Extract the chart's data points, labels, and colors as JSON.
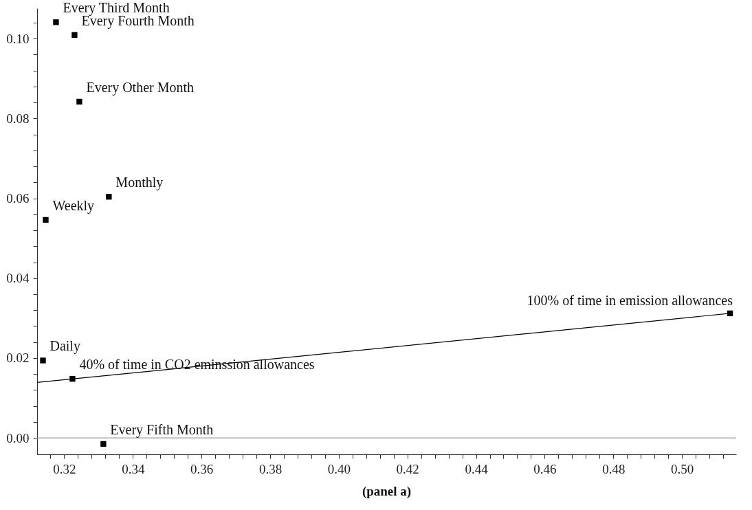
{
  "chart_data": {
    "type": "scatter",
    "title": "(panel a)",
    "marker": "square",
    "series": [
      {
        "color": "#000000",
        "x": [
          0.3176,
          0.323,
          0.3244,
          0.333,
          0.3146,
          0.3138,
          0.3224,
          0.3314,
          0.514
        ],
        "values": [
          0.1041,
          0.1009,
          0.0842,
          0.0604,
          0.0546,
          0.0194,
          0.0148,
          -0.0015,
          0.0312
        ]
      },
      {
        "type": "line",
        "marker": "none",
        "color": "#000000",
        "x": [
          0.3121,
          0.514
        ],
        "values": [
          0.0139,
          0.0312
        ]
      }
    ],
    "annotations": [
      {
        "text": "Every Third Month",
        "x": 0.3176,
        "y": 0.1041
      },
      {
        "text": "Every Fourth Month",
        "x": 0.323,
        "y": 0.1009
      },
      {
        "text": "Every Other Month",
        "x": 0.3244,
        "y": 0.0842
      },
      {
        "text": "Monthly",
        "x": 0.333,
        "y": 0.0604
      },
      {
        "text": "Weekly",
        "x": 0.3146,
        "y": 0.0546
      },
      {
        "text": "Daily",
        "x": 0.3138,
        "y": 0.0194
      },
      {
        "text": "40% of time in CO2 eminssion allowances",
        "x": 0.3224,
        "y": 0.0148
      },
      {
        "text": "Every Fifth Month",
        "x": 0.3314,
        "y": -0.0015
      },
      {
        "text": "100% of time in emission allowances",
        "x": 0.514,
        "y": 0.0312
      }
    ],
    "ref_lines": [
      {
        "axis": "y",
        "value": 0,
        "color": "#a0a0a0"
      }
    ],
    "xlim": [
      0.3121,
      0.5158
    ],
    "ylim": [
      -0.0041,
      0.1076
    ],
    "xticks": [
      {
        "value": 0.316,
        "label": null
      },
      {
        "value": 0.32,
        "label": "0.32"
      },
      {
        "value": 0.324,
        "label": null
      },
      {
        "value": 0.328,
        "label": null
      },
      {
        "value": 0.332,
        "label": null
      },
      {
        "value": 0.336,
        "label": null
      },
      {
        "value": 0.34,
        "label": "0.34"
      },
      {
        "value": 0.344,
        "label": null
      },
      {
        "value": 0.348,
        "label": null
      },
      {
        "value": 0.352,
        "label": null
      },
      {
        "value": 0.356,
        "label": null
      },
      {
        "value": 0.36,
        "label": "0.36"
      },
      {
        "value": 0.364,
        "label": null
      },
      {
        "value": 0.368,
        "label": null
      },
      {
        "value": 0.372,
        "label": null
      },
      {
        "value": 0.376,
        "label": null
      },
      {
        "value": 0.38,
        "label": "0.38"
      },
      {
        "value": 0.384,
        "label": null
      },
      {
        "value": 0.388,
        "label": null
      },
      {
        "value": 0.392,
        "label": null
      },
      {
        "value": 0.396,
        "label": null
      },
      {
        "value": 0.4,
        "label": "0.40"
      },
      {
        "value": 0.404,
        "label": null
      },
      {
        "value": 0.408,
        "label": null
      },
      {
        "value": 0.412,
        "label": null
      },
      {
        "value": 0.416,
        "label": null
      },
      {
        "value": 0.42,
        "label": "0.42"
      },
      {
        "value": 0.424,
        "label": null
      },
      {
        "value": 0.428,
        "label": null
      },
      {
        "value": 0.432,
        "label": null
      },
      {
        "value": 0.436,
        "label": null
      },
      {
        "value": 0.44,
        "label": "0.44"
      },
      {
        "value": 0.444,
        "label": null
      },
      {
        "value": 0.448,
        "label": null
      },
      {
        "value": 0.452,
        "label": null
      },
      {
        "value": 0.456,
        "label": null
      },
      {
        "value": 0.46,
        "label": "0.46"
      },
      {
        "value": 0.464,
        "label": null
      },
      {
        "value": 0.468,
        "label": null
      },
      {
        "value": 0.472,
        "label": null
      },
      {
        "value": 0.476,
        "label": null
      },
      {
        "value": 0.48,
        "label": "0.48"
      },
      {
        "value": 0.484,
        "label": null
      },
      {
        "value": 0.488,
        "label": null
      },
      {
        "value": 0.492,
        "label": null
      },
      {
        "value": 0.496,
        "label": null
      },
      {
        "value": 0.5,
        "label": "0.50"
      },
      {
        "value": 0.504,
        "label": null
      },
      {
        "value": 0.508,
        "label": null
      },
      {
        "value": 0.512,
        "label": null
      }
    ],
    "yticks": [
      {
        "value": 0,
        "label": "0.00"
      },
      {
        "value": 0.004,
        "label": null
      },
      {
        "value": 0.008,
        "label": null
      },
      {
        "value": 0.012,
        "label": null
      },
      {
        "value": 0.016,
        "label": null
      },
      {
        "value": 0.02,
        "label": "0.02"
      },
      {
        "value": 0.024,
        "label": null
      },
      {
        "value": 0.028,
        "label": null
      },
      {
        "value": 0.032,
        "label": null
      },
      {
        "value": 0.036,
        "label": null
      },
      {
        "value": 0.04,
        "label": "0.04"
      },
      {
        "value": 0.044,
        "label": null
      },
      {
        "value": 0.048,
        "label": null
      },
      {
        "value": 0.052,
        "label": null
      },
      {
        "value": 0.056,
        "label": null
      },
      {
        "value": 0.06,
        "label": "0.06"
      },
      {
        "value": 0.064,
        "label": null
      },
      {
        "value": 0.068,
        "label": null
      },
      {
        "value": 0.072,
        "label": null
      },
      {
        "value": 0.076,
        "label": null
      },
      {
        "value": 0.08,
        "label": "0.08"
      },
      {
        "value": 0.084,
        "label": null
      },
      {
        "value": 0.088,
        "label": null
      },
      {
        "value": 0.092,
        "label": null
      },
      {
        "value": 0.096,
        "label": null
      },
      {
        "value": 0.1,
        "label": "0.10"
      },
      {
        "value": 0.104,
        "label": null
      }
    ]
  }
}
